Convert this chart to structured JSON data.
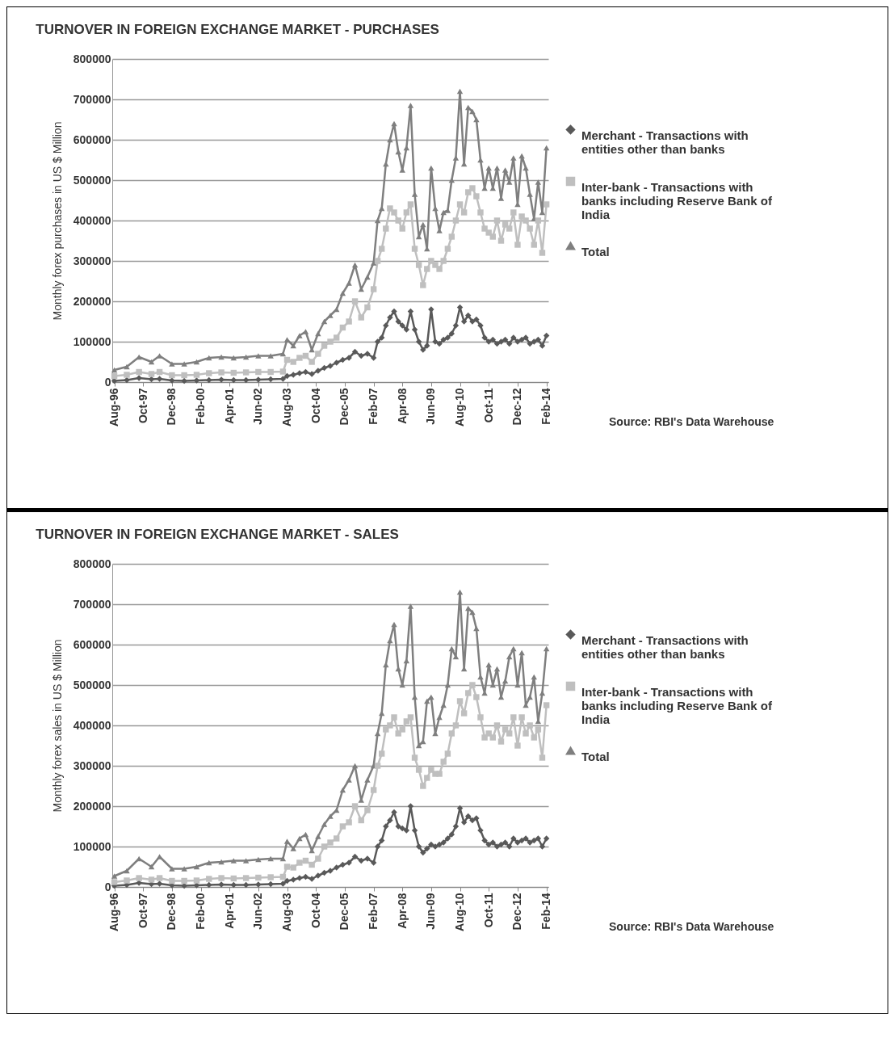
{
  "chart_data": [
    {
      "type": "line",
      "title": "TURNOVER IN FOREIGN EXCHANGE MARKET - PURCHASES",
      "ylabel": "Monthly forex purchases in US $ Million",
      "x": [
        "1996-08",
        "1997-02",
        "1997-08",
        "1998-02",
        "1998-06",
        "1998-12",
        "1999-06",
        "1999-12",
        "2000-06",
        "2000-12",
        "2001-06",
        "2001-12",
        "2002-06",
        "2002-12",
        "2003-06",
        "2003-08",
        "2003-11",
        "2004-02",
        "2004-05",
        "2004-08",
        "2004-11",
        "2005-02",
        "2005-05",
        "2005-08",
        "2005-11",
        "2006-02",
        "2006-05",
        "2006-08",
        "2006-11",
        "2007-02",
        "2007-04",
        "2007-06",
        "2007-08",
        "2007-10",
        "2007-12",
        "2008-02",
        "2008-04",
        "2008-06",
        "2008-08",
        "2008-10",
        "2008-12",
        "2009-02",
        "2009-04",
        "2009-06",
        "2009-08",
        "2009-10",
        "2009-12",
        "2010-02",
        "2010-04",
        "2010-06",
        "2010-08",
        "2010-10",
        "2010-12",
        "2011-02",
        "2011-04",
        "2011-06",
        "2011-08",
        "2011-10",
        "2011-12",
        "2012-02",
        "2012-04",
        "2012-06",
        "2012-08",
        "2012-10",
        "2012-12",
        "2013-02",
        "2013-04",
        "2013-06",
        "2013-08",
        "2013-10",
        "2013-12",
        "2014-02"
      ],
      "xlim": [
        "1996-07",
        "2014-03"
      ],
      "xticks": [
        {
          "value": "1996-08",
          "label": "Aug-96"
        },
        {
          "value": "1997-10",
          "label": "Oct-97"
        },
        {
          "value": "1998-12",
          "label": "Dec-98"
        },
        {
          "value": "2000-02",
          "label": "Feb-00"
        },
        {
          "value": "2001-04",
          "label": "Apr-01"
        },
        {
          "value": "2002-06",
          "label": "Jun-02"
        },
        {
          "value": "2003-08",
          "label": "Aug-03"
        },
        {
          "value": "2004-10",
          "label": "Oct-04"
        },
        {
          "value": "2005-12",
          "label": "Dec-05"
        },
        {
          "value": "2007-02",
          "label": "Feb-07"
        },
        {
          "value": "2008-04",
          "label": "Apr-08"
        },
        {
          "value": "2009-06",
          "label": "Jun-09"
        },
        {
          "value": "2010-08",
          "label": "Aug-10"
        },
        {
          "value": "2011-10",
          "label": "Oct-11"
        },
        {
          "value": "2012-12",
          "label": "Dec-12"
        },
        {
          "value": "2014-02",
          "label": "Feb-14"
        }
      ],
      "ylim": [
        0,
        800000
      ],
      "yticks": [
        0,
        100000,
        200000,
        300000,
        400000,
        500000,
        600000,
        700000,
        800000
      ],
      "grid": "y",
      "legend": "right",
      "series": [
        {
          "name": "Merchant - Transactions with entities other than banks",
          "color": "#595959",
          "marker": "diamond",
          "values": [
            3000,
            5000,
            10000,
            7000,
            8000,
            4000,
            3000,
            4000,
            5000,
            6000,
            5000,
            5000,
            6000,
            7000,
            8000,
            15000,
            18000,
            22000,
            25000,
            20000,
            28000,
            35000,
            40000,
            48000,
            55000,
            60000,
            75000,
            65000,
            70000,
            60000,
            100000,
            110000,
            140000,
            160000,
            175000,
            150000,
            140000,
            130000,
            175000,
            130000,
            100000,
            80000,
            90000,
            180000,
            100000,
            95000,
            105000,
            110000,
            120000,
            140000,
            185000,
            150000,
            165000,
            150000,
            155000,
            140000,
            110000,
            100000,
            105000,
            95000,
            100000,
            105000,
            95000,
            110000,
            100000,
            105000,
            110000,
            95000,
            100000,
            105000,
            90000,
            115000
          ]
        },
        {
          "name": "Inter-bank - Transactions with banks including  Reserve Bank of India",
          "color": "#bfbfbf",
          "marker": "square",
          "values": [
            15000,
            18000,
            25000,
            20000,
            25000,
            17000,
            17000,
            18000,
            22000,
            24000,
            23000,
            24000,
            25000,
            25000,
            26000,
            55000,
            50000,
            60000,
            65000,
            50000,
            70000,
            90000,
            100000,
            110000,
            135000,
            150000,
            200000,
            160000,
            185000,
            230000,
            300000,
            330000,
            380000,
            430000,
            420000,
            400000,
            380000,
            420000,
            440000,
            330000,
            290000,
            240000,
            280000,
            300000,
            290000,
            280000,
            300000,
            330000,
            360000,
            400000,
            440000,
            420000,
            470000,
            480000,
            460000,
            420000,
            380000,
            370000,
            360000,
            400000,
            350000,
            390000,
            380000,
            420000,
            340000,
            410000,
            400000,
            380000,
            340000,
            400000,
            320000,
            440000
          ]
        },
        {
          "name": "Total",
          "color": "#7f7f7f",
          "marker": "triangle",
          "values": [
            30000,
            38000,
            62000,
            50000,
            65000,
            45000,
            45000,
            50000,
            60000,
            62000,
            60000,
            62000,
            65000,
            65000,
            70000,
            105000,
            90000,
            115000,
            125000,
            80000,
            120000,
            150000,
            165000,
            180000,
            220000,
            245000,
            290000,
            230000,
            260000,
            295000,
            400000,
            430000,
            540000,
            600000,
            640000,
            570000,
            525000,
            580000,
            685000,
            465000,
            360000,
            390000,
            330000,
            530000,
            430000,
            375000,
            420000,
            425000,
            500000,
            555000,
            720000,
            540000,
            680000,
            670000,
            650000,
            550000,
            480000,
            530000,
            480000,
            530000,
            455000,
            525000,
            495000,
            555000,
            440000,
            560000,
            530000,
            465000,
            405000,
            495000,
            420000,
            580000
          ]
        }
      ],
      "annotations": [
        "Source: RBI's Data Warehouse"
      ]
    },
    {
      "type": "line",
      "title": "TURNOVER IN FOREIGN EXCHANGE MARKET - SALES",
      "ylabel": "Monthly forex sales in US $ Million",
      "x": [
        "1996-08",
        "1997-02",
        "1997-08",
        "1998-02",
        "1998-06",
        "1998-12",
        "1999-06",
        "1999-12",
        "2000-06",
        "2000-12",
        "2001-06",
        "2001-12",
        "2002-06",
        "2002-12",
        "2003-06",
        "2003-08",
        "2003-11",
        "2004-02",
        "2004-05",
        "2004-08",
        "2004-11",
        "2005-02",
        "2005-05",
        "2005-08",
        "2005-11",
        "2006-02",
        "2006-05",
        "2006-08",
        "2006-11",
        "2007-02",
        "2007-04",
        "2007-06",
        "2007-08",
        "2007-10",
        "2007-12",
        "2008-02",
        "2008-04",
        "2008-06",
        "2008-08",
        "2008-10",
        "2008-12",
        "2009-02",
        "2009-04",
        "2009-06",
        "2009-08",
        "2009-10",
        "2009-12",
        "2010-02",
        "2010-04",
        "2010-06",
        "2010-08",
        "2010-10",
        "2010-12",
        "2011-02",
        "2011-04",
        "2011-06",
        "2011-08",
        "2011-10",
        "2011-12",
        "2012-02",
        "2012-04",
        "2012-06",
        "2012-08",
        "2012-10",
        "2012-12",
        "2013-02",
        "2013-04",
        "2013-06",
        "2013-08",
        "2013-10",
        "2013-12",
        "2014-02"
      ],
      "xlim": [
        "1996-07",
        "2014-03"
      ],
      "xticks": [
        {
          "value": "1996-08",
          "label": "Aug-96"
        },
        {
          "value": "1997-10",
          "label": "Oct-97"
        },
        {
          "value": "1998-12",
          "label": "Dec-98"
        },
        {
          "value": "2000-02",
          "label": "Feb-00"
        },
        {
          "value": "2001-04",
          "label": "Apr-01"
        },
        {
          "value": "2002-06",
          "label": "Jun-02"
        },
        {
          "value": "2003-08",
          "label": "Aug-03"
        },
        {
          "value": "2004-10",
          "label": "Oct-04"
        },
        {
          "value": "2005-12",
          "label": "Dec-05"
        },
        {
          "value": "2007-02",
          "label": "Feb-07"
        },
        {
          "value": "2008-04",
          "label": "Apr-08"
        },
        {
          "value": "2009-06",
          "label": "Jun-09"
        },
        {
          "value": "2010-08",
          "label": "Aug-10"
        },
        {
          "value": "2011-10",
          "label": "Oct-11"
        },
        {
          "value": "2012-12",
          "label": "Dec-12"
        },
        {
          "value": "2014-02",
          "label": "Feb-14"
        }
      ],
      "ylim": [
        0,
        800000
      ],
      "yticks": [
        0,
        100000,
        200000,
        300000,
        400000,
        500000,
        600000,
        700000,
        800000
      ],
      "grid": "y",
      "legend": "right",
      "series": [
        {
          "name": "Merchant - Transactions with entities other than banks",
          "color": "#595959",
          "marker": "diamond",
          "values": [
            3000,
            5000,
            10000,
            7000,
            8000,
            4000,
            3000,
            4000,
            5000,
            6000,
            5000,
            5000,
            6000,
            7000,
            8000,
            15000,
            18000,
            22000,
            25000,
            20000,
            28000,
            35000,
            40000,
            48000,
            55000,
            60000,
            75000,
            65000,
            70000,
            60000,
            100000,
            115000,
            150000,
            165000,
            185000,
            150000,
            145000,
            140000,
            200000,
            140000,
            100000,
            85000,
            95000,
            105000,
            100000,
            105000,
            110000,
            120000,
            130000,
            150000,
            195000,
            160000,
            175000,
            165000,
            170000,
            140000,
            115000,
            105000,
            110000,
            100000,
            105000,
            110000,
            100000,
            120000,
            110000,
            115000,
            120000,
            110000,
            115000,
            120000,
            100000,
            120000
          ]
        },
        {
          "name": "Inter-bank - Transactions with banks including  Reserve Bank of India",
          "color": "#bfbfbf",
          "marker": "square",
          "values": [
            12000,
            16000,
            22000,
            18000,
            22000,
            15000,
            15000,
            16000,
            20000,
            22000,
            21000,
            22000,
            23000,
            24000,
            25000,
            50000,
            48000,
            60000,
            65000,
            55000,
            70000,
            100000,
            110000,
            120000,
            150000,
            160000,
            200000,
            165000,
            190000,
            240000,
            300000,
            330000,
            390000,
            400000,
            420000,
            380000,
            390000,
            410000,
            420000,
            320000,
            290000,
            250000,
            270000,
            290000,
            280000,
            280000,
            310000,
            330000,
            380000,
            400000,
            460000,
            430000,
            480000,
            500000,
            470000,
            420000,
            370000,
            380000,
            370000,
            400000,
            360000,
            390000,
            380000,
            420000,
            350000,
            420000,
            380000,
            400000,
            370000,
            390000,
            320000,
            450000
          ]
        },
        {
          "name": "Total",
          "color": "#7f7f7f",
          "marker": "triangle",
          "values": [
            27000,
            40000,
            70000,
            50000,
            75000,
            45000,
            45000,
            50000,
            60000,
            62000,
            65000,
            65000,
            68000,
            70000,
            70000,
            113000,
            95000,
            120000,
            130000,
            90000,
            125000,
            155000,
            175000,
            190000,
            240000,
            265000,
            300000,
            215000,
            265000,
            300000,
            380000,
            430000,
            550000,
            610000,
            650000,
            540000,
            500000,
            560000,
            695000,
            470000,
            350000,
            360000,
            460000,
            470000,
            380000,
            420000,
            450000,
            500000,
            590000,
            570000,
            730000,
            540000,
            690000,
            680000,
            640000,
            520000,
            480000,
            550000,
            500000,
            540000,
            470000,
            510000,
            570000,
            590000,
            500000,
            580000,
            450000,
            470000,
            520000,
            410000,
            480000,
            590000
          ]
        }
      ],
      "annotations": [
        "Source: RBI's Data Warehouse"
      ]
    }
  ]
}
